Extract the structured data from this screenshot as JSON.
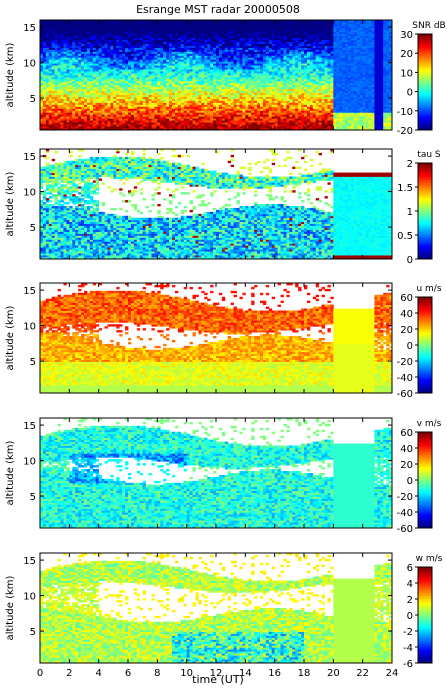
{
  "figure": {
    "title": "Esrange MST radar 20000508",
    "xlabel": "time (UT)",
    "ylabel": "altitude (km)"
  },
  "chart_data": [
    {
      "type": "heatmap",
      "title": "Esrange MST radar 20000508",
      "xlabel": "",
      "ylabel": "altitude (km)",
      "xlim": [
        0,
        24
      ],
      "ylim": [
        0.5,
        16
      ],
      "x_ticks": [
        0,
        2,
        4,
        6,
        8,
        10,
        12,
        14,
        16,
        18,
        20,
        22,
        24
      ],
      "y_ticks": [
        5,
        10,
        15
      ],
      "colorbar": {
        "label": "SNR dB",
        "range": [
          -20,
          30
        ],
        "ticks": [
          -20,
          -10,
          0,
          10,
          20,
          30
        ]
      },
      "description_values": {
        "pattern": "snr"
      }
    },
    {
      "type": "heatmap",
      "xlabel": "",
      "ylabel": "altitude (km)",
      "xlim": [
        0,
        24
      ],
      "ylim": [
        0.5,
        16
      ],
      "x_ticks": [
        0,
        2,
        4,
        6,
        8,
        10,
        12,
        14,
        16,
        18,
        20,
        22,
        24
      ],
      "y_ticks": [
        5,
        10,
        15
      ],
      "colorbar": {
        "label": "tau S",
        "range": [
          0,
          2
        ],
        "ticks": [
          0,
          0.5,
          1,
          1.5,
          2
        ]
      },
      "description_values": {
        "pattern": "tau"
      }
    },
    {
      "type": "heatmap",
      "xlabel": "",
      "ylabel": "altitude (km)",
      "xlim": [
        0,
        24
      ],
      "ylim": [
        0.5,
        16
      ],
      "x_ticks": [
        0,
        2,
        4,
        6,
        8,
        10,
        12,
        14,
        16,
        18,
        20,
        22,
        24
      ],
      "y_ticks": [
        5,
        10,
        15
      ],
      "colorbar": {
        "label": "u m/s",
        "range": [
          -60,
          60
        ],
        "ticks": [
          -60,
          -40,
          -20,
          0,
          20,
          40,
          60
        ]
      },
      "description_values": {
        "pattern": "u"
      }
    },
    {
      "type": "heatmap",
      "xlabel": "",
      "ylabel": "altitude (km)",
      "xlim": [
        0,
        24
      ],
      "ylim": [
        0.5,
        16
      ],
      "x_ticks": [
        0,
        2,
        4,
        6,
        8,
        10,
        12,
        14,
        16,
        18,
        20,
        22,
        24
      ],
      "y_ticks": [
        5,
        10,
        15
      ],
      "colorbar": {
        "label": "v m/s",
        "range": [
          -60,
          60
        ],
        "ticks": [
          -60,
          -40,
          -20,
          0,
          20,
          40,
          60
        ]
      },
      "description_values": {
        "pattern": "v"
      }
    },
    {
      "type": "heatmap",
      "xlabel": "time (UT)",
      "ylabel": "altitude (km)",
      "xlim": [
        0,
        24
      ],
      "ylim": [
        0.5,
        16
      ],
      "x_ticks": [
        0,
        2,
        4,
        6,
        8,
        10,
        12,
        14,
        16,
        18,
        20,
        22,
        24
      ],
      "y_ticks": [
        5,
        10,
        15
      ],
      "colorbar": {
        "label": "w m/s",
        "range": [
          -6,
          6
        ],
        "ticks": [
          -6,
          -4,
          -2,
          0,
          2,
          4,
          6
        ]
      },
      "description_values": {
        "pattern": "w"
      }
    }
  ]
}
